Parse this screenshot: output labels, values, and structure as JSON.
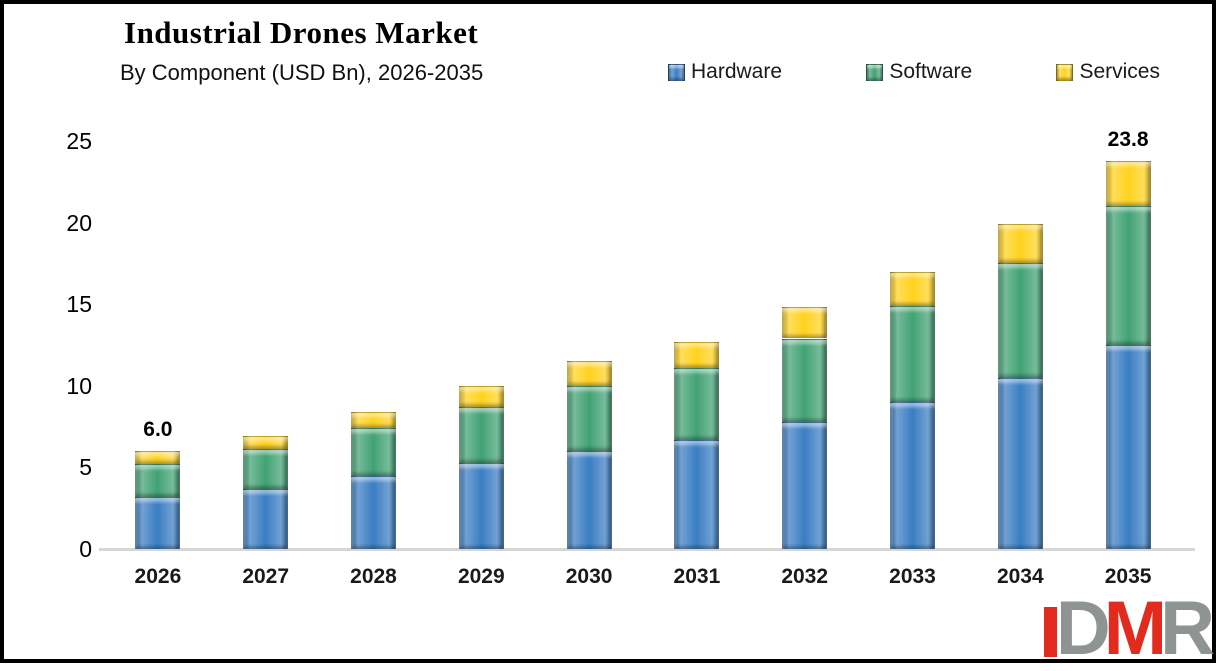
{
  "header": {
    "title": "Industrial Drones Market",
    "subtitle": "By Component (USD Bn), 2026-2035"
  },
  "legend": [
    {
      "label": "Hardware",
      "color": "#3A7EC2"
    },
    {
      "label": "Software",
      "color": "#41A274"
    },
    {
      "label": "Services",
      "color": "#FFD21E"
    }
  ],
  "chart_data": {
    "type": "bar",
    "stacked": true,
    "title": "Industrial Drones Market",
    "subtitle": "By Component (USD Bn), 2026-2035",
    "categories": [
      "2026",
      "2027",
      "2028",
      "2029",
      "2030",
      "2031",
      "2032",
      "2033",
      "2034",
      "2035"
    ],
    "series": [
      {
        "name": "Hardware",
        "color": "#3A7EC2",
        "values": [
          3.2,
          3.7,
          4.5,
          5.3,
          6.0,
          6.7,
          7.8,
          9.0,
          10.5,
          12.5
        ]
      },
      {
        "name": "Software",
        "color": "#41A274",
        "values": [
          2.0,
          2.4,
          2.9,
          3.4,
          4.0,
          4.4,
          5.1,
          5.9,
          7.0,
          8.5
        ]
      },
      {
        "name": "Services",
        "color": "#FFD21E",
        "values": [
          0.8,
          0.8,
          1.0,
          1.3,
          1.5,
          1.6,
          1.9,
          2.1,
          2.4,
          2.8
        ]
      }
    ],
    "totals_labels": {
      "2026": "6.0",
      "2035": "23.8"
    },
    "yticks": [
      0,
      5,
      10,
      15,
      20,
      25
    ],
    "ylim": [
      0,
      25
    ],
    "grid": false,
    "legend_position": "top-right",
    "baseline_color": "#D6D6D6"
  },
  "logo": {
    "letters": [
      {
        "t": "D",
        "color": "#8E9394"
      },
      {
        "t": "M",
        "color": "#E22A1E"
      },
      {
        "t": "R",
        "color": "#8E9394"
      }
    ],
    "accent_color": "#E22A1E"
  }
}
